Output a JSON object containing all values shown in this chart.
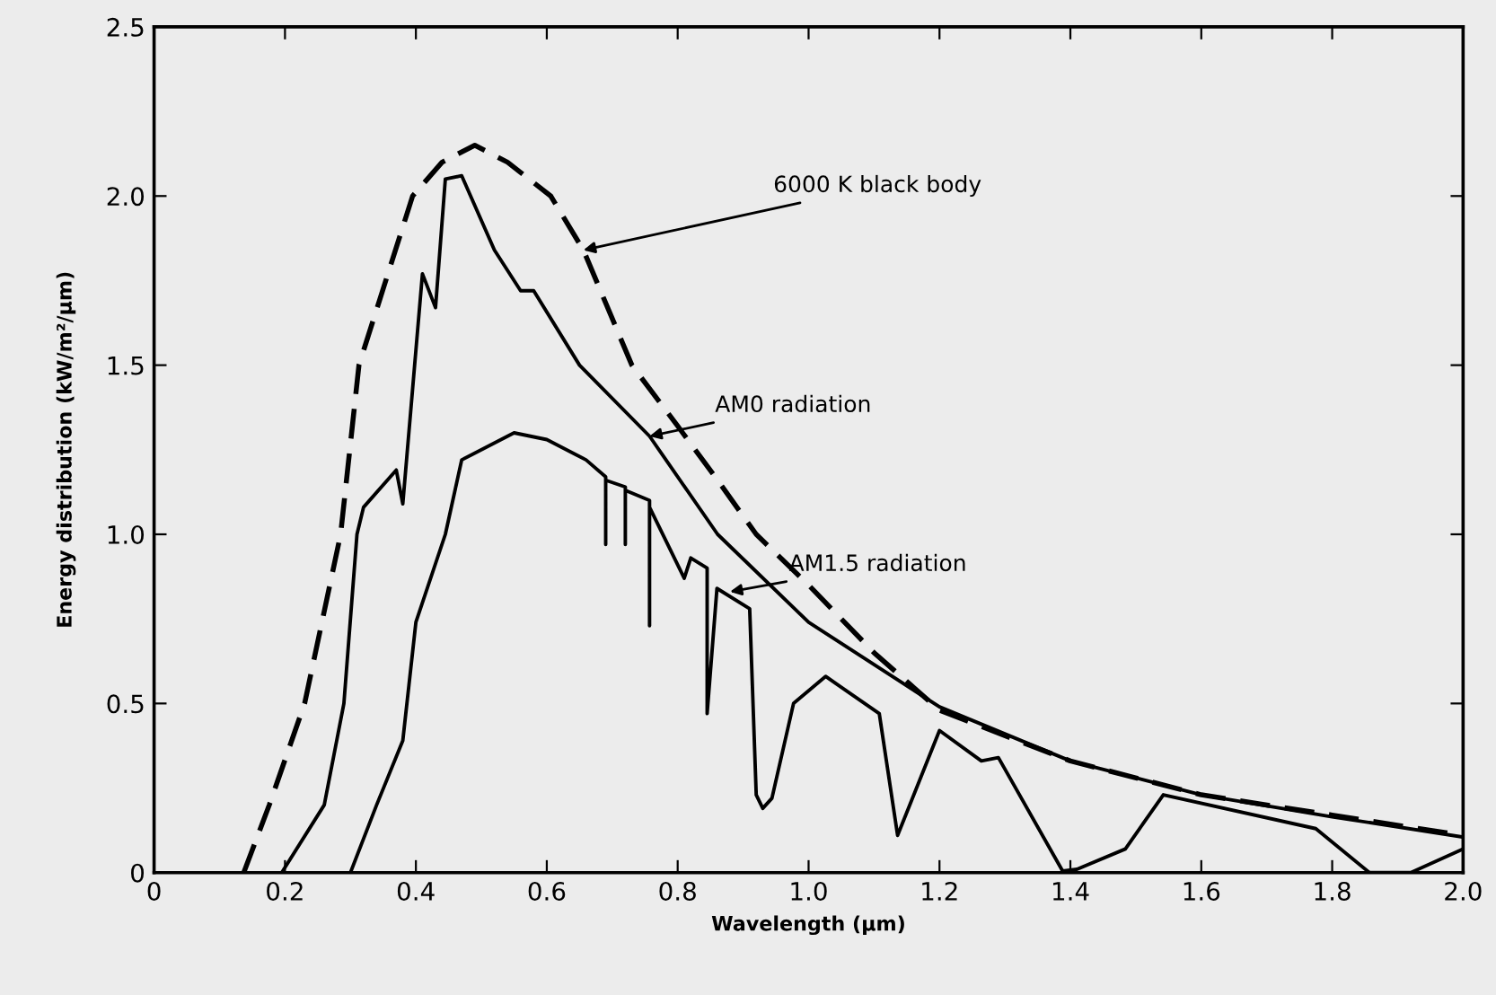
{
  "chart_data": {
    "type": "line",
    "xlabel": "Wavelength (μm)",
    "ylabel": "Energy distribution (kW/m²/μm)",
    "xlim": [
      0,
      2.0
    ],
    "ylim": [
      0,
      2.5
    ],
    "xticks": [
      0,
      0.2,
      0.4,
      0.6,
      0.8,
      {
        "value": 1.0,
        "label": "1.0"
      },
      1.2,
      1.4,
      1.6,
      1.8,
      {
        "value": 2.0,
        "label": "2.0"
      }
    ],
    "yticks": [
      0,
      0.5,
      {
        "value": 1.0,
        "label": "1.0"
      },
      1.5,
      {
        "value": 2.0,
        "label": "2.0"
      },
      2.5
    ],
    "grid": false,
    "legend": false,
    "marker": "none",
    "series": [
      {
        "color": "#000000",
        "line_style": "dashed",
        "x": [
          0.137,
          0.176,
          0.23,
          0.285,
          0.313,
          0.395,
          0.44,
          0.49,
          0.54,
          0.606,
          0.656,
          0.73,
          0.8,
          0.861,
          0.92,
          1.0,
          1.1,
          1.2,
          1.4,
          1.6,
          1.8,
          2.0
        ],
        "values": [
          0,
          0.2,
          0.5,
          1.0,
          1.5,
          2.0,
          2.1,
          2.15,
          2.1,
          2.0,
          1.84,
          1.5,
          1.32,
          1.16,
          1.0,
          0.85,
          0.65,
          0.48,
          0.33,
          0.23,
          0.17,
          0.11
        ]
      },
      {
        "color": "#000000",
        "line_style": "solid",
        "x": [
          0.195,
          0.26,
          0.29,
          0.31,
          0.32,
          0.37,
          0.38,
          0.41,
          0.43,
          0.445,
          0.47,
          0.52,
          0.56,
          0.58,
          0.65,
          0.757,
          0.861,
          1.0,
          1.2,
          1.4,
          1.6,
          1.8,
          2.0
        ],
        "values": [
          0,
          0.2,
          0.5,
          1.0,
          1.08,
          1.19,
          1.09,
          1.77,
          1.67,
          2.05,
          2.06,
          1.84,
          1.72,
          1.72,
          1.5,
          1.29,
          1.0,
          0.74,
          0.49,
          0.33,
          0.23,
          0.165,
          0.105
        ]
      },
      {
        "color": "#000000",
        "line_style": "solid",
        "x": [
          0.3,
          0.34,
          0.38,
          0.4,
          0.445,
          0.47,
          0.55,
          0.6,
          0.66,
          0.69,
          0.69,
          0.69,
          0.72,
          0.72,
          0.72,
          0.757,
          0.757,
          0.757,
          0.81,
          0.82,
          0.845,
          0.845,
          0.86,
          0.91,
          0.92,
          0.93,
          0.944,
          0.977,
          1.026,
          1.108,
          1.136,
          1.2,
          1.264,
          1.29,
          1.388,
          1.41,
          1.484,
          1.542,
          1.775,
          1.857,
          1.92,
          2.0
        ],
        "values": [
          0,
          0.2,
          0.39,
          0.74,
          1.0,
          1.22,
          1.3,
          1.28,
          1.22,
          1.17,
          0.97,
          1.16,
          1.14,
          0.97,
          1.13,
          1.1,
          0.73,
          1.08,
          0.87,
          0.93,
          0.9,
          0.47,
          0.84,
          0.78,
          0.23,
          0.19,
          0.22,
          0.5,
          0.58,
          0.47,
          0.11,
          0.42,
          0.33,
          0.34,
          0.005,
          0.01,
          0.07,
          0.23,
          0.13,
          0,
          0,
          0.07
        ]
      }
    ],
    "annotations": [
      {
        "text": "6000 K black body",
        "x": 0.656,
        "y": 1.84
      },
      {
        "text": "AM0 radiation",
        "x": 0.757,
        "y": 1.29
      },
      {
        "text": "AM1.5 radiation",
        "x": 0.88,
        "y": 0.83
      }
    ]
  }
}
